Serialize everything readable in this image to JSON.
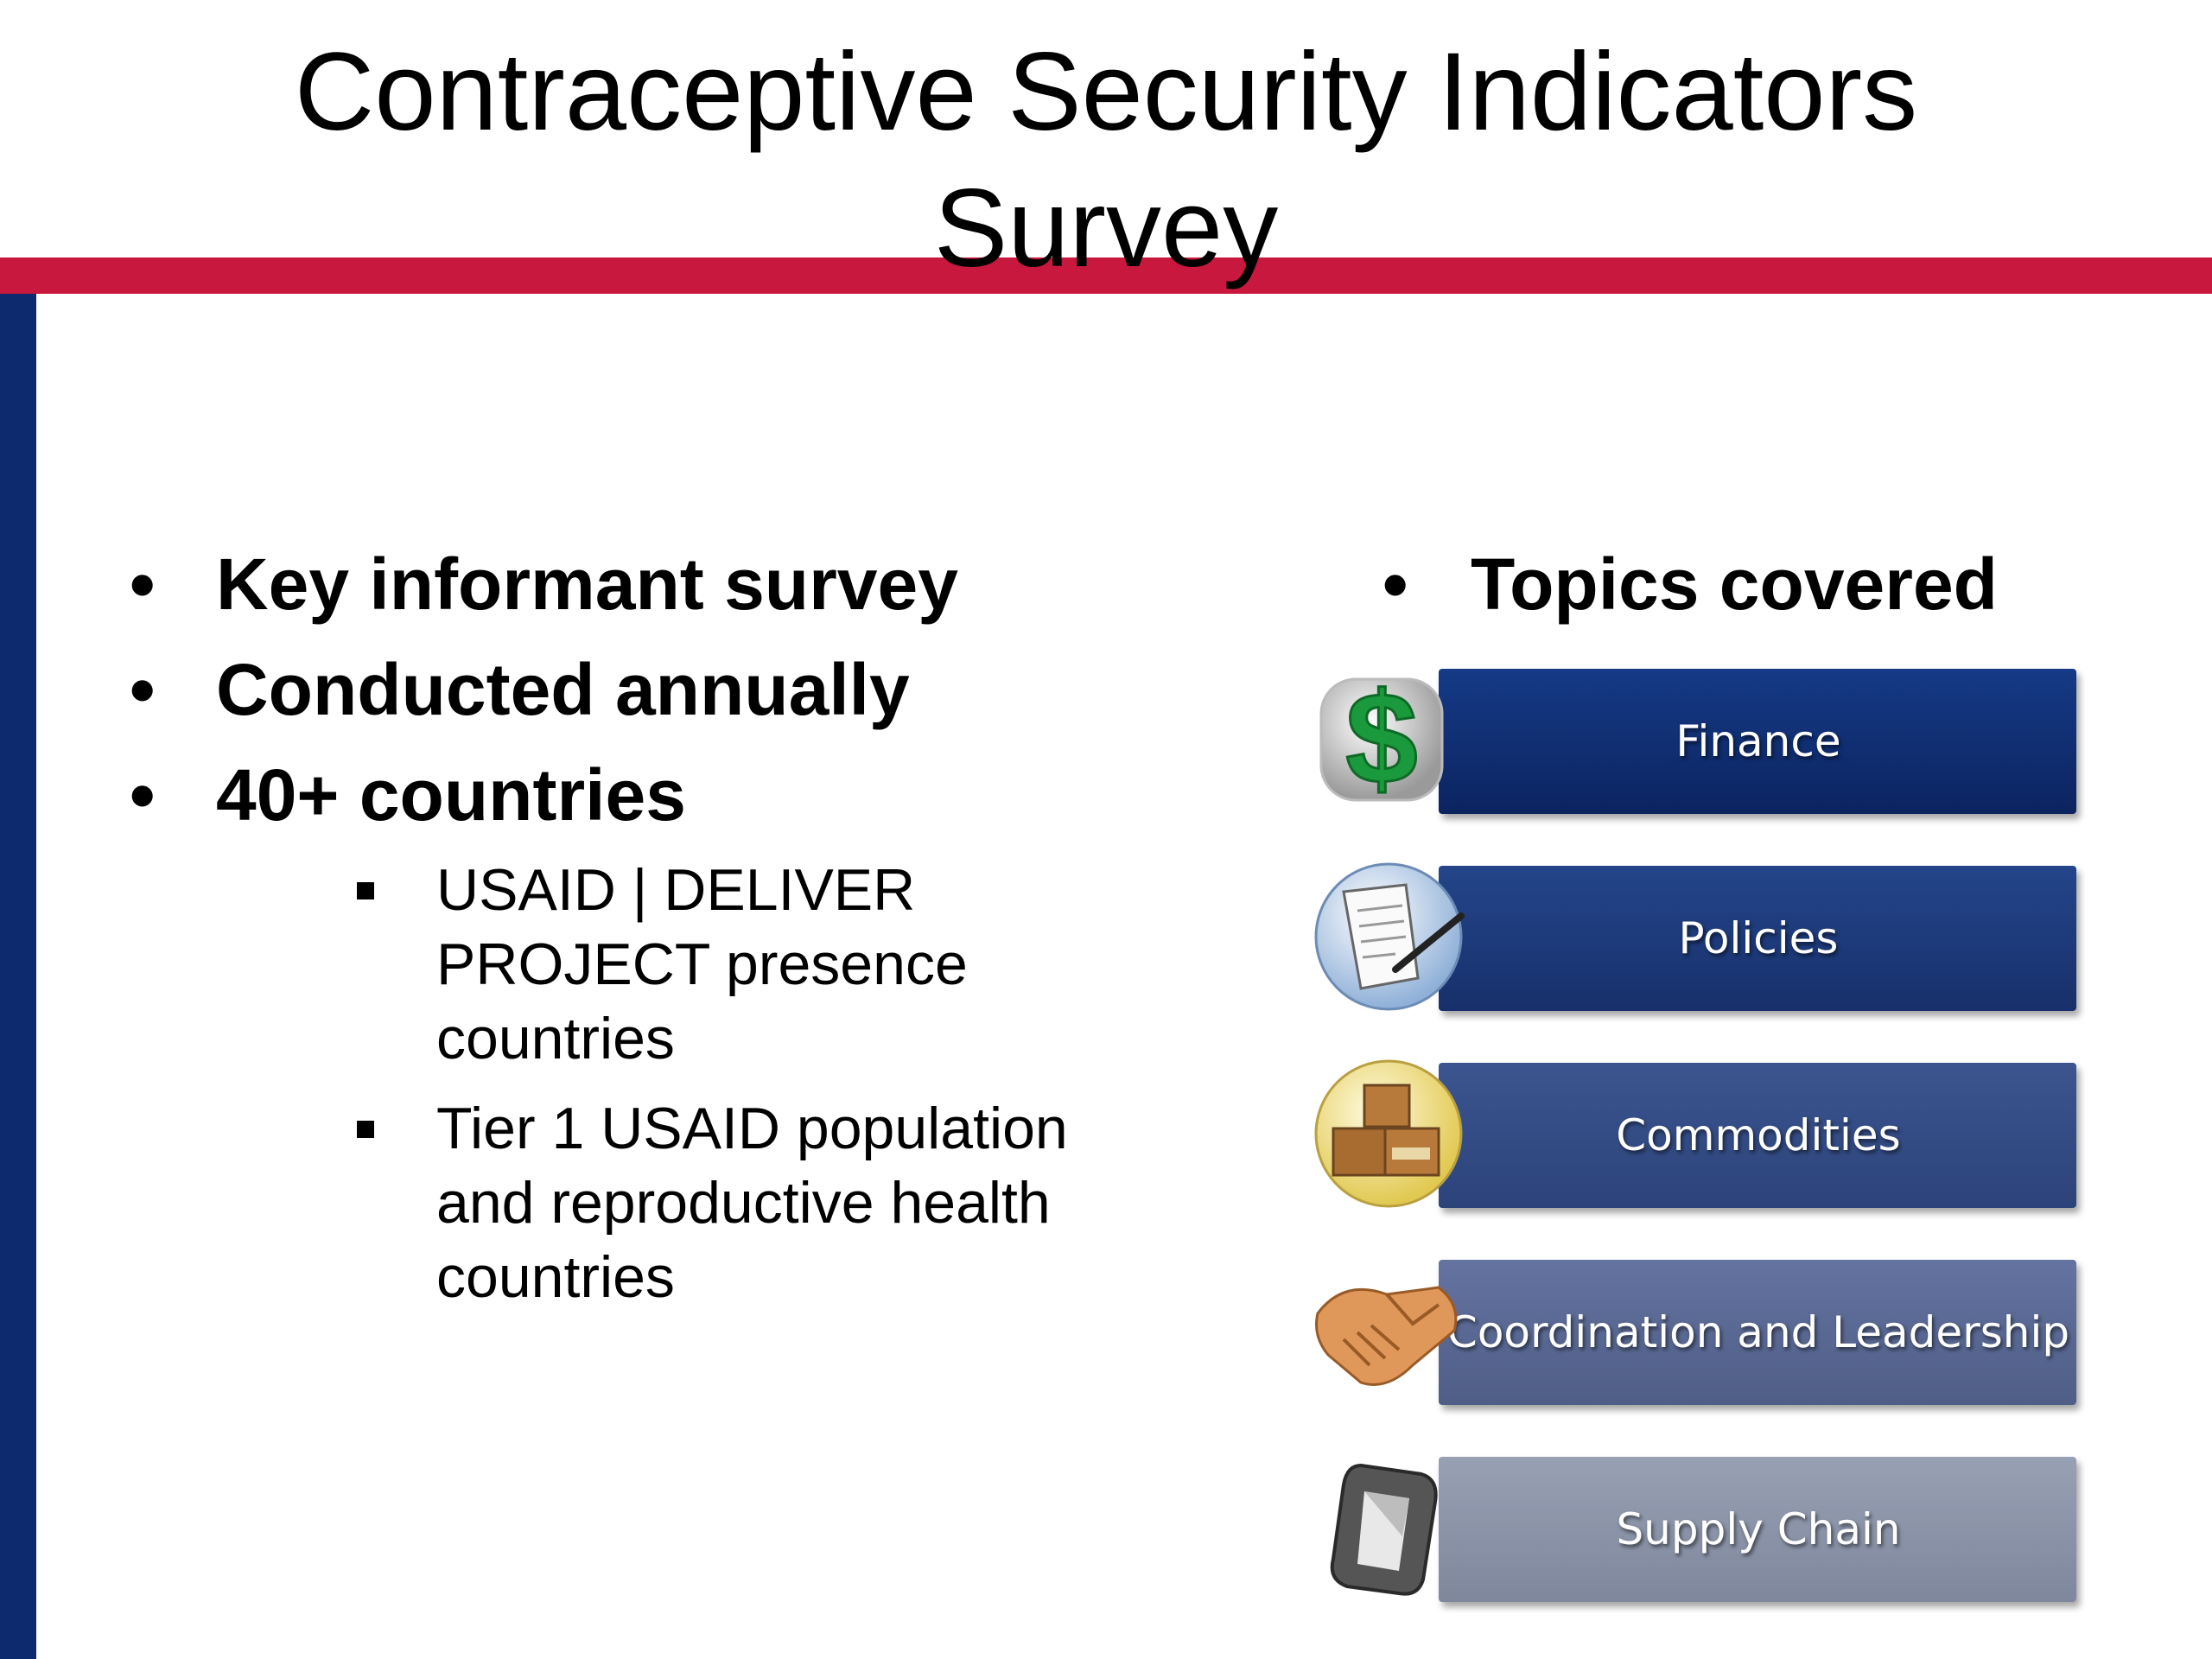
{
  "slide": {
    "title_line1": "Contraceptive Security Indicators",
    "title_line2": "Survey"
  },
  "left_bullets": [
    {
      "bullet": "•",
      "text": "Key informant survey"
    },
    {
      "bullet": "•",
      "text": "Conducted annually"
    },
    {
      "bullet": "•",
      "text": "40+ countries"
    }
  ],
  "sub_bullets": [
    {
      "text": "USAID | DELIVER PROJECT presence countries"
    },
    {
      "text": "Tier 1 USAID population and reproductive health countries"
    }
  ],
  "topics": {
    "bullet": "•",
    "heading": "Topics covered",
    "items": [
      {
        "label": "Finance",
        "icon": "dollar-icon",
        "color": "#0e2a6b"
      },
      {
        "label": "Policies",
        "icon": "document-pen-icon",
        "color": "#1c3b78"
      },
      {
        "label": "Commodities",
        "icon": "boxes-icon",
        "color": "#344c82"
      },
      {
        "label": "Coordination and Leadership",
        "icon": "handshake-icon",
        "color": "#5b6a8f"
      },
      {
        "label": "Supply Chain",
        "icon": "chain-link-icon",
        "color": "#8891a6"
      }
    ]
  },
  "colors": {
    "header_rule": "#c8183e",
    "side_bar": "#0d2a6e"
  }
}
